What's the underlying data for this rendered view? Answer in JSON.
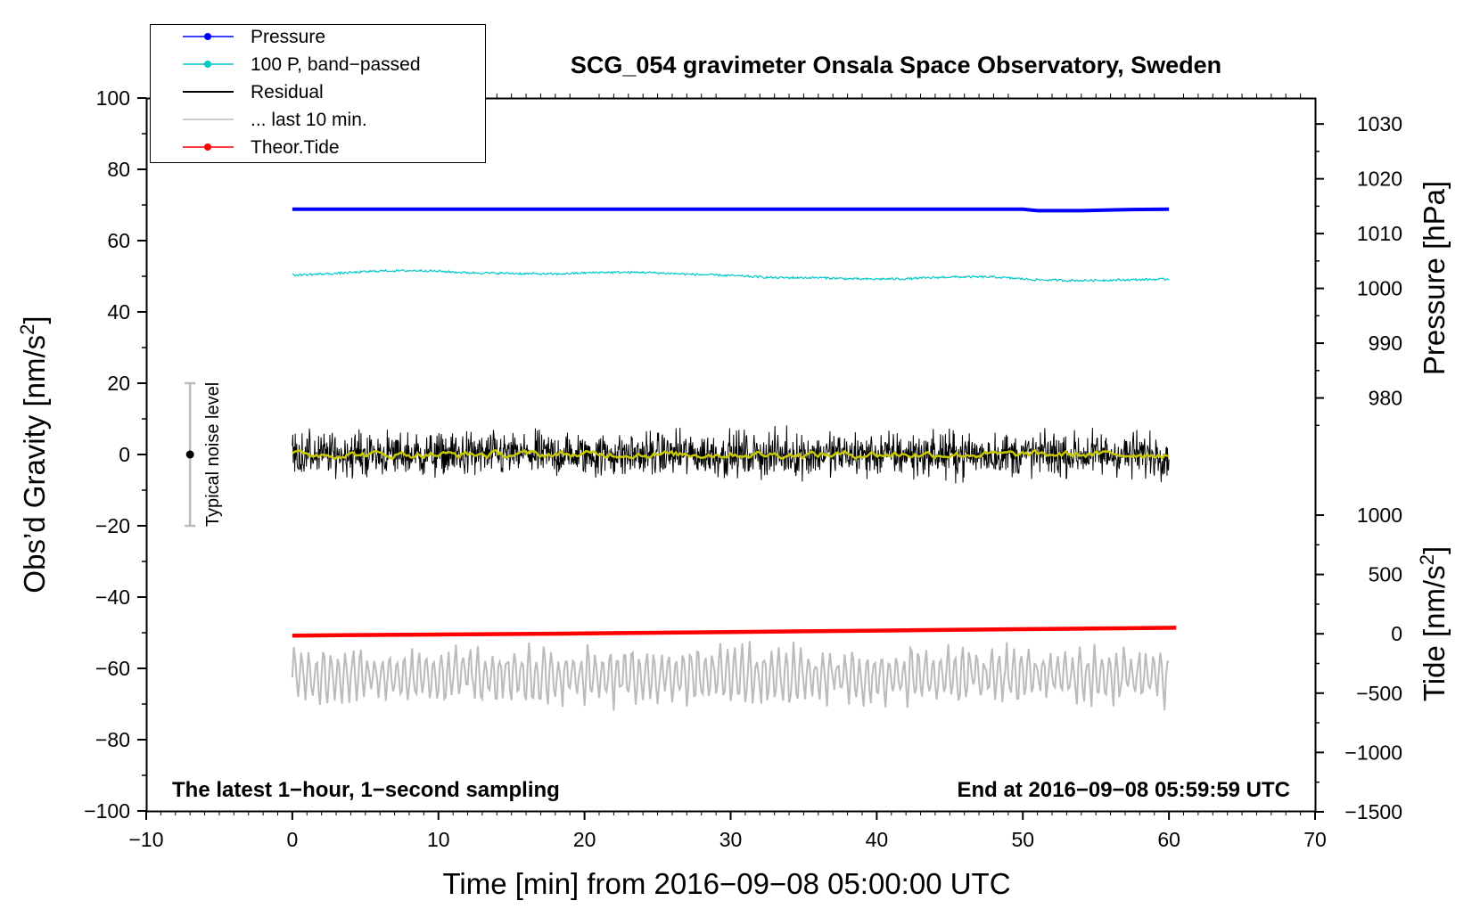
{
  "chart_data": {
    "type": "line",
    "title": "SCG_054 gravimeter Onsala Space Observatory, Sweden",
    "xlabel": "Time [min] from 2016−09−08 05:00:00 UTC",
    "ylabel": "Obs’d Gravity [nm/s",
    "ylabel_sup": "2",
    "ylabel_end": "]",
    "xlim": [
      -10,
      70
    ],
    "ylim": [
      -100,
      100
    ],
    "x_ticks": [
      -10,
      0,
      10,
      20,
      30,
      40,
      50,
      60,
      70
    ],
    "x_tick_labels": [
      "−10",
      "0",
      "10",
      "20",
      "30",
      "40",
      "50",
      "60",
      "70"
    ],
    "y_ticks": [
      -100,
      -80,
      -60,
      -40,
      -20,
      0,
      20,
      40,
      60,
      80,
      100
    ],
    "y_tick_labels": [
      "−100",
      "−80",
      "−60",
      "−40",
      "−20",
      "0",
      "20",
      "40",
      "60",
      "80",
      "100"
    ],
    "right_axis_pressure": {
      "label": "Pressure [hPa]",
      "ticks": [
        980,
        990,
        1000,
        1010,
        1020,
        1030
      ],
      "tick_labels": [
        "980",
        "990",
        "1000",
        "1010",
        "1020",
        "1030"
      ],
      "ref_value": 1000,
      "ref_gravity": 46.6,
      "gravity_per_unit": 1.537
    },
    "right_axis_tide": {
      "label": "Tide [nm/s",
      "label_sup": "2",
      "label_end": "]",
      "ticks": [
        -1500,
        -1000,
        -500,
        0,
        500,
        1000
      ],
      "tick_labels": [
        "−1500",
        "−1000",
        "−500",
        "0",
        "500",
        "1000"
      ],
      "ref_value": 0,
      "ref_gravity": -50.3,
      "gravity_per_unit": 0.03329
    },
    "legend": [
      {
        "label": "Pressure",
        "color": "#0000ff",
        "marker": true
      },
      {
        "label": "100 P, band−passed",
        "color": "#00c8c8",
        "marker": true
      },
      {
        "label": "Residual",
        "color": "#000000",
        "marker": false
      },
      {
        "label": "... last 10 min.",
        "color": "#bbbbbb",
        "marker": false
      },
      {
        "label": "Theor.Tide",
        "color": "#ff0000",
        "marker": true
      }
    ],
    "legend_position": "top-left",
    "annotation_left": "The latest 1−hour, 1−second sampling",
    "annotation_right": "End at 2016−09−08 05:59:59 UTC",
    "noise_bar": {
      "label": "Typical noise level",
      "x": -7,
      "center": 0,
      "low": -20,
      "high": 20
    },
    "series": [
      {
        "name": "Pressure",
        "color": "#0000ff",
        "x": [
          0,
          10,
          20,
          30,
          40,
          50,
          51,
          54,
          57,
          60
        ],
        "y": [
          68.8,
          68.8,
          68.8,
          68.8,
          68.8,
          68.8,
          68.4,
          68.4,
          68.7,
          68.8
        ]
      },
      {
        "name": "100 P, band−passed",
        "color": "#00c8c8",
        "x": [
          0,
          3,
          6,
          9,
          12,
          15,
          18,
          21,
          24,
          27,
          30,
          33,
          36,
          39,
          42,
          45,
          48,
          51,
          54,
          57,
          60
        ],
        "y": [
          50.3,
          50.8,
          51.5,
          51.6,
          51.0,
          50.8,
          50.6,
          51.1,
          51.1,
          50.6,
          50.2,
          49.6,
          49.6,
          49.2,
          49.3,
          49.8,
          49.8,
          49.0,
          48.8,
          49.0,
          49.2
        ]
      },
      {
        "name": "Residual",
        "color": "#000000",
        "x_range": [
          0,
          60
        ],
        "amplitude": 7,
        "mean": 0
      },
      {
        "name": "Residual smoothed",
        "color": "#c8c800",
        "x_range": [
          0,
          60
        ],
        "amplitude": 1.5,
        "mean": 0
      },
      {
        "name": "Theor.Tide",
        "color": "#ff0000",
        "x": [
          0,
          10,
          20,
          30,
          40,
          50,
          60.5
        ],
        "y": [
          -50.8,
          -50.5,
          -50.2,
          -49.8,
          -49.4,
          -49.0,
          -48.6
        ]
      },
      {
        "name": "... last 10 min.",
        "color": "#bbbbbb",
        "x_range": [
          0,
          60
        ],
        "amplitude": 9,
        "mean": -62
      }
    ]
  }
}
